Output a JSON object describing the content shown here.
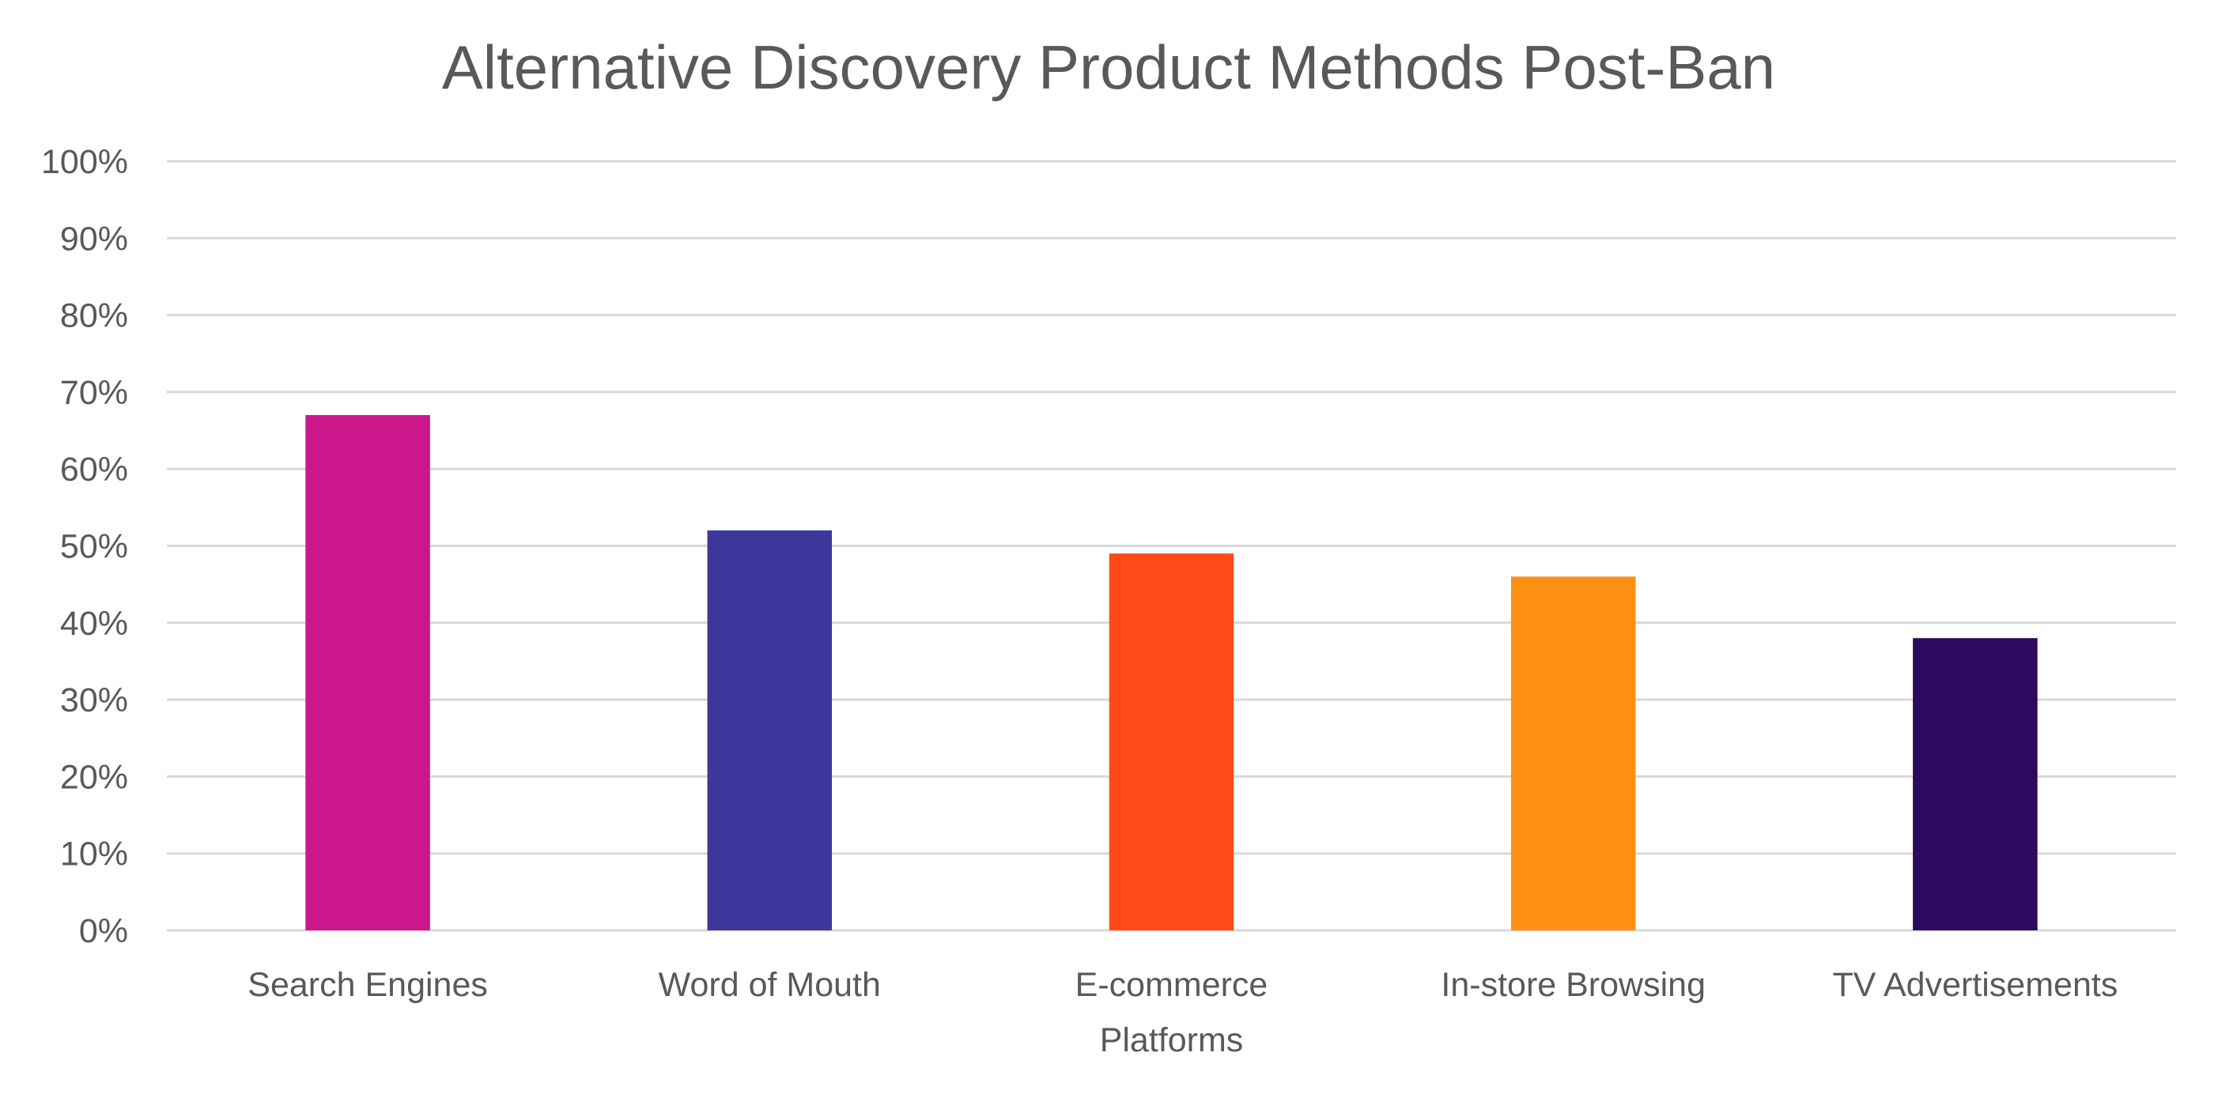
{
  "chart_data": {
    "type": "bar",
    "title": "Alternative Discovery Product Methods Post-Ban",
    "xlabel": "",
    "ylabel": "",
    "categories": [
      "Search Engines",
      "Word of Mouth",
      "E-commerce Platforms",
      "In-store Browsing",
      "TV Advertisements"
    ],
    "values": [
      67,
      52,
      49,
      46,
      38
    ],
    "colors": [
      "#CC168C",
      "#3F389C",
      "#FF4A17",
      "#FD9013",
      "#2E0A5E"
    ],
    "ylim": [
      0,
      100
    ],
    "yticks": [
      0,
      10,
      20,
      30,
      40,
      50,
      60,
      70,
      80,
      90,
      100
    ],
    "ytick_format": "percent",
    "grid": true,
    "legend": "none"
  }
}
